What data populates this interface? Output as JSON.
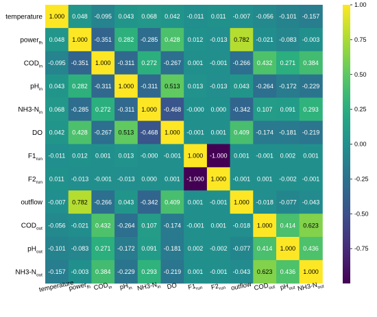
{
  "chart_data": {
    "type": "heatmap",
    "title": "",
    "labels": [
      {
        "base": "temperature",
        "sub": ""
      },
      {
        "base": "power",
        "sub": "fh"
      },
      {
        "base": "COD",
        "sub": "in"
      },
      {
        "base": "pH",
        "sub": "in"
      },
      {
        "base": "NH3-N",
        "sub": "in"
      },
      {
        "base": "DO",
        "sub": ""
      },
      {
        "base": "F1",
        "sub": "run"
      },
      {
        "base": "F2",
        "sub": "run"
      },
      {
        "base": "outflow",
        "sub": ""
      },
      {
        "base": "COD",
        "sub": "out"
      },
      {
        "base": "pH",
        "sub": "out"
      },
      {
        "base": "NH3-N",
        "sub": "out"
      }
    ],
    "matrix": [
      [
        "1.000",
        "0.048",
        "-0.095",
        "0.043",
        "0.068",
        "0.042",
        "-0.011",
        "0.011",
        "-0.007",
        "-0.056",
        "-0.101",
        "-0.157"
      ],
      [
        "0.048",
        "1.000",
        "-0.351",
        "0.282",
        "-0.285",
        "0.428",
        "0.012",
        "-0.013",
        "0.782",
        "-0.021",
        "-0.083",
        "-0.003"
      ],
      [
        "-0.095",
        "-0.351",
        "1.000",
        "-0.311",
        "0.272",
        "-0.267",
        "0.001",
        "-0.001",
        "-0.266",
        "0.432",
        "0.271",
        "0.384"
      ],
      [
        "0.043",
        "0.282",
        "-0.311",
        "1.000",
        "-0.311",
        "0.513",
        "0.013",
        "-0.013",
        "0.043",
        "-0.264",
        "-0.172",
        "-0.229"
      ],
      [
        "0.068",
        "-0.285",
        "0.272",
        "-0.311",
        "1.000",
        "-0.468",
        "-0.000",
        "0.000",
        "-0.342",
        "0.107",
        "0.091",
        "0.293"
      ],
      [
        "0.042",
        "0.428",
        "-0.267",
        "0.513",
        "-0.468",
        "1.000",
        "-0.001",
        "0.001",
        "0.409",
        "-0.174",
        "-0.181",
        "-0.219"
      ],
      [
        "-0.011",
        "0.012",
        "0.001",
        "0.013",
        "-0.000",
        "-0.001",
        "1.000",
        "-1.000",
        "0.001",
        "-0.001",
        "0.002",
        "0.001"
      ],
      [
        "0.011",
        "-0.013",
        "-0.001",
        "-0.013",
        "0.000",
        "0.001",
        "-1.000",
        "1.000",
        "-0.001",
        "0.001",
        "-0.002",
        "-0.001"
      ],
      [
        "-0.007",
        "0.782",
        "-0.266",
        "0.043",
        "-0.342",
        "0.409",
        "0.001",
        "-0.001",
        "1.000",
        "-0.018",
        "-0.077",
        "-0.043"
      ],
      [
        "-0.056",
        "-0.021",
        "0.432",
        "-0.264",
        "0.107",
        "-0.174",
        "-0.001",
        "0.001",
        "-0.018",
        "1.000",
        "0.414",
        "0.623"
      ],
      [
        "-0.101",
        "-0.083",
        "0.271",
        "-0.172",
        "0.091",
        "-0.181",
        "0.002",
        "-0.002",
        "-0.077",
        "0.414",
        "1.000",
        "0.436"
      ],
      [
        "-0.157",
        "-0.003",
        "0.384",
        "-0.229",
        "0.293",
        "-0.219",
        "0.001",
        "-0.001",
        "-0.043",
        "0.623",
        "0.436",
        "1.000"
      ]
    ],
    "colorbar": {
      "min": -1.0,
      "max": 1.0,
      "ticks": [
        "1.00",
        "0.75",
        "0.50",
        "0.25",
        "0.00",
        "-0.25",
        "-0.50",
        "-0.75"
      ],
      "colormap": "viridis"
    }
  }
}
